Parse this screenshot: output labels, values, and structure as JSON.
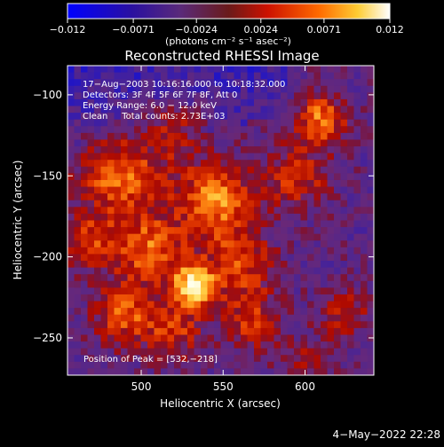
{
  "colorbar": {
    "ticks": [
      "-0.012",
      "-0.0071",
      "-0.0024",
      "0.0024",
      "0.0071",
      "0.012"
    ],
    "unit_label": "(photons cm⁻² s⁻¹ asec⁻²)",
    "range": [
      -0.012,
      0.012
    ]
  },
  "chart_data": {
    "type": "heatmap",
    "title": "Reconstructed RHESSI Image",
    "xlabel": "Heliocentric X (arcsec)",
    "ylabel": "Heliocentric Y (arcsec)",
    "xlim": [
      455,
      642
    ],
    "ylim": [
      -273,
      -82
    ],
    "xticks": [
      500,
      550,
      600
    ],
    "yticks": [
      -100,
      -150,
      -200,
      -250
    ],
    "xtick_labels": [
      "500",
      "550",
      "600"
    ],
    "ytick_labels": [
      "−100",
      "−150",
      "−200",
      "−250"
    ],
    "info_lines": [
      "17−Aug−2003 10:16:16.000 to 10:18:32.000",
      "Detectors: 3F 4F 5F 6F 7F 8F, Att 0",
      "Energy Range: 6.0 − 12.0 keV",
      "Clean     Total counts: 2.73E+03"
    ],
    "peak_text": "Position of Peak = [532,−218]",
    "peak": [
      532,
      -218
    ],
    "colormap": [
      "#0000ff",
      "#4b0082",
      "#7a2fa0",
      "#8a2a4a",
      "#cc1100",
      "#ff6600",
      "#ffcc33",
      "#ffffff"
    ]
  },
  "footer": {
    "date": "4−May−2022 22:28"
  }
}
